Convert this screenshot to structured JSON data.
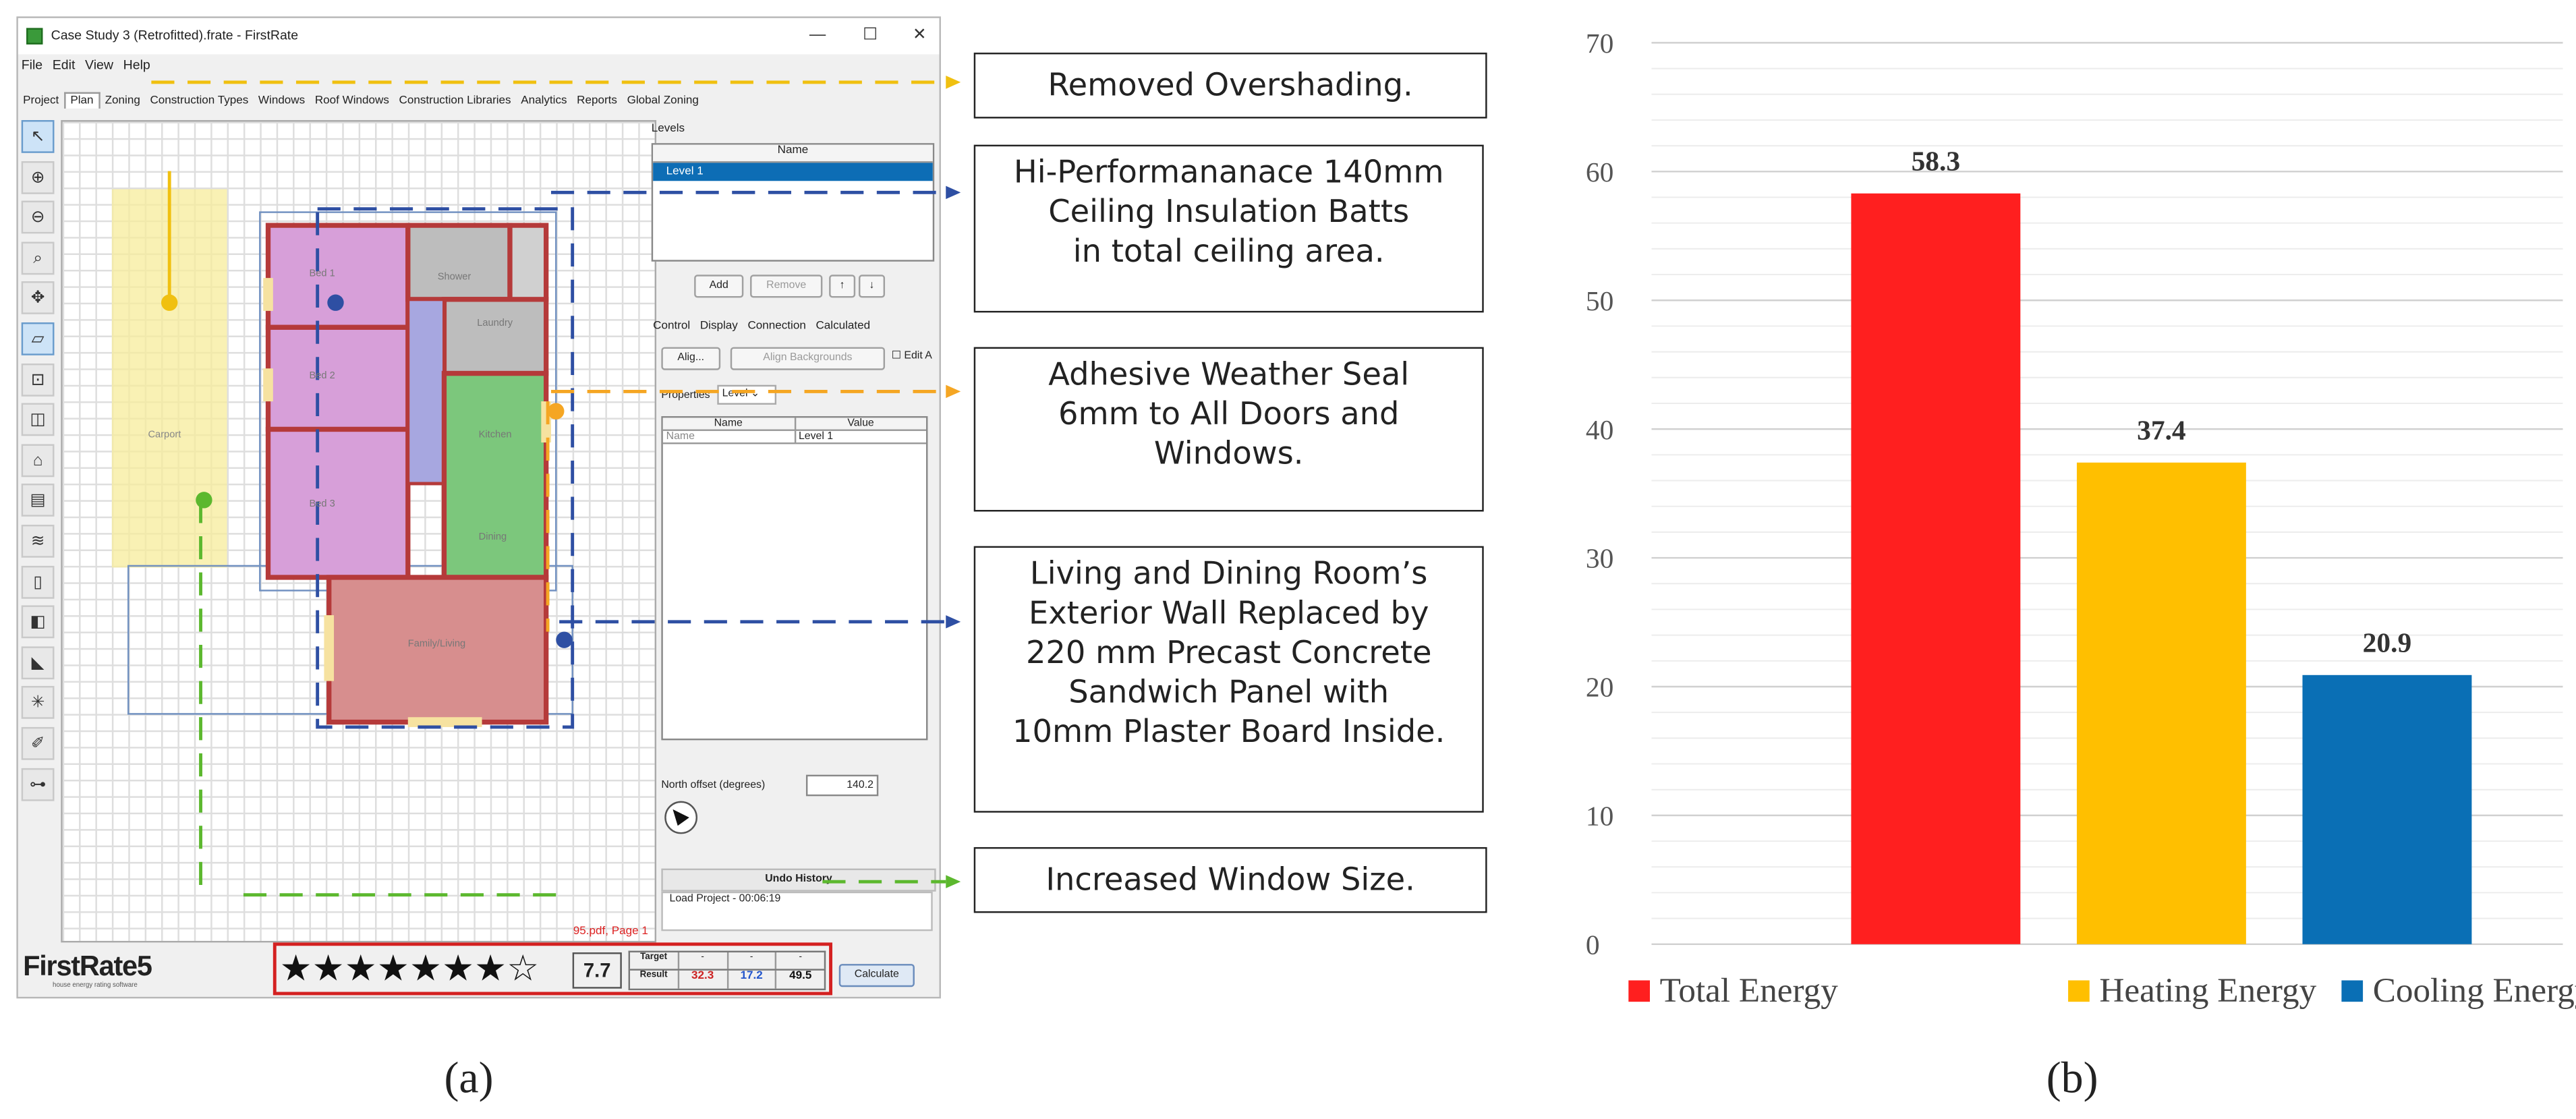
{
  "window": {
    "title": "Case Study 3 (Retrofitted).frate - FirstRate",
    "controls": [
      "—",
      "☐",
      "✕"
    ]
  },
  "menu": [
    "File",
    "Edit",
    "View",
    "Help"
  ],
  "tabs": [
    "Project",
    "Plan",
    "Zoning",
    "Construction Types",
    "Windows",
    "Roof Windows",
    "Construction Libraries",
    "Analytics",
    "Reports",
    "Global Zoning"
  ],
  "active_tab": "Plan",
  "toolbar_icons": [
    "select-pointer-icon",
    "zoom-in-icon",
    "zoom-out-icon",
    "zoom-fit-icon",
    "pan-icon",
    "draw-room-icon",
    "draw-wall-icon",
    "draw-zone-icon",
    "roof-icon",
    "floor-icon",
    "ceiling-icon",
    "door-icon",
    "window-icon",
    "shade-icon",
    "snap-icon",
    "eraser-icon",
    "measure-icon"
  ],
  "plan": {
    "rooms": [
      "Carport",
      "Bed 1",
      "Bed 2",
      "Bed 3",
      "Shower",
      "Laundry",
      "Kitchen",
      "Dining",
      "Family/Living"
    ],
    "footer_text": "95.pdf, Page 1"
  },
  "levels_panel": {
    "title": "Levels",
    "column": "Name",
    "rows": [
      "Level 1"
    ],
    "buttons": {
      "add": "Add",
      "remove": "Remove",
      "up": "↑",
      "down": "↓"
    }
  },
  "control_panel": {
    "tabs": [
      "Control",
      "Display",
      "Connection",
      "Calculated"
    ],
    "align_btn": "Alig...",
    "align_backgrounds_btn": "Align Backgrounds",
    "edit_label": "Edit A",
    "properties_label": "Properties",
    "properties_select": "Level",
    "prop_columns": [
      "Name",
      "Value"
    ],
    "prop_rows": [
      {
        "name": "Name",
        "value": "Level 1"
      }
    ],
    "north_label": "North offset (degrees)",
    "north_value": "140.2"
  },
  "undo_panel": {
    "title": "Undo History",
    "entry": "Load Project - 00:06:19"
  },
  "rating": {
    "logo": "FirstRate5",
    "tagline": "house energy rating software",
    "stars_filled": 7,
    "stars_total": 8,
    "star_glyphs": "★★★★★★★☆",
    "score": "7.7",
    "target_label": "Target",
    "result_label": "Result",
    "target_values": [
      "-",
      "-",
      "-"
    ],
    "result_values": [
      "32.3",
      "17.2",
      "49.5"
    ],
    "result_colors": [
      "#cc2222",
      "#2255cc",
      "#111111"
    ],
    "calculate_label": "Calculate"
  },
  "annotations": [
    {
      "text": "Removed Overshading.",
      "color": "#f0c010"
    },
    {
      "text": "Hi-Performananace 140mm Ceiling Insulation Batts in total ceiling area.",
      "color": "#2e4fa3"
    },
    {
      "text": "Adhesive Weather Seal 6mm to All Doors and Windows.",
      "color": "#f5a623"
    },
    {
      "text": "Living and Dining Room’s Exterior Wall Replaced by 220 mm Precast Concrete Sandwich Panel with 10mm Plaster Board Inside.",
      "color": "#2e4fa3"
    },
    {
      "text": "Increased Window Size.",
      "color": "#5cb82e"
    }
  ],
  "annotation_lines": [
    [
      "Removed Overshading."
    ],
    [
      "Hi-Performananace 140mm",
      "Ceiling Insulation Batts",
      "in total ceiling area."
    ],
    [
      "Adhesive Weather Seal",
      "6mm to All Doors and",
      "Windows."
    ],
    [
      "Living and Dining Room’s",
      "Exterior Wall Replaced by",
      "220 mm Precast Concrete",
      "Sandwich Panel with",
      "10mm Plaster Board Inside."
    ],
    [
      "Increased Window Size."
    ]
  ],
  "chart_data": {
    "type": "bar",
    "title": "",
    "xlabel": "",
    "ylabel": "",
    "categories": [
      "Total Energy",
      "Heating Energy",
      "Cooling Energy"
    ],
    "values": [
      58.3,
      37.4,
      20.9
    ],
    "colors": [
      "#ff1f1f",
      "#ffbf00",
      "#0a6fb5"
    ],
    "ylim": [
      0,
      70
    ],
    "yticks": [
      0,
      10,
      20,
      30,
      40,
      50,
      60,
      70
    ],
    "grid": true,
    "legend": "bottom"
  },
  "captions": {
    "a": "(a)",
    "b": "(b)"
  }
}
